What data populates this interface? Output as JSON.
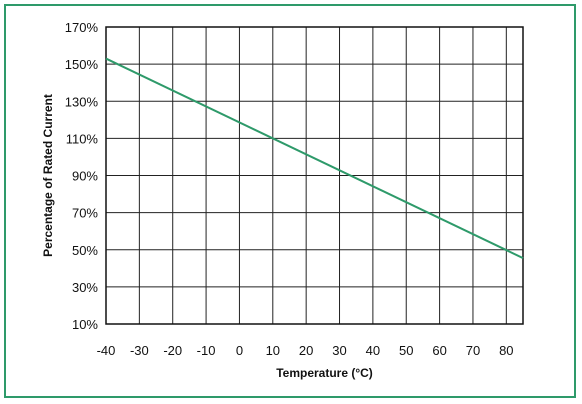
{
  "chart_data": {
    "type": "line",
    "title": "",
    "xlabel": "Temperature (°C)",
    "ylabel": "Percentage of Rated Current",
    "xlim": [
      -40,
      85
    ],
    "ylim": [
      10,
      170
    ],
    "x_ticks": [
      -40,
      -30,
      -20,
      -10,
      0,
      10,
      20,
      30,
      40,
      50,
      60,
      70,
      80
    ],
    "x_tick_labels": [
      "-40",
      "-30",
      "-20",
      "-10",
      "0",
      "10",
      "20",
      "30",
      "40",
      "50",
      "60",
      "70",
      "80"
    ],
    "y_ticks": [
      10,
      30,
      50,
      70,
      90,
      110,
      130,
      150,
      170
    ],
    "y_tick_labels": [
      "10%",
      "30%",
      "50%",
      "70%",
      "90%",
      "110%",
      "130%",
      "150%",
      "170%"
    ],
    "grid": true,
    "legend": "none",
    "series": [
      {
        "x": [
          -40,
          85
        ],
        "y": [
          153,
          45.5
        ],
        "color": "#2e9a6a"
      }
    ],
    "colors": {
      "frame": "#2e9a6a",
      "line": "#2e9a6a",
      "grid": "#222222"
    }
  }
}
